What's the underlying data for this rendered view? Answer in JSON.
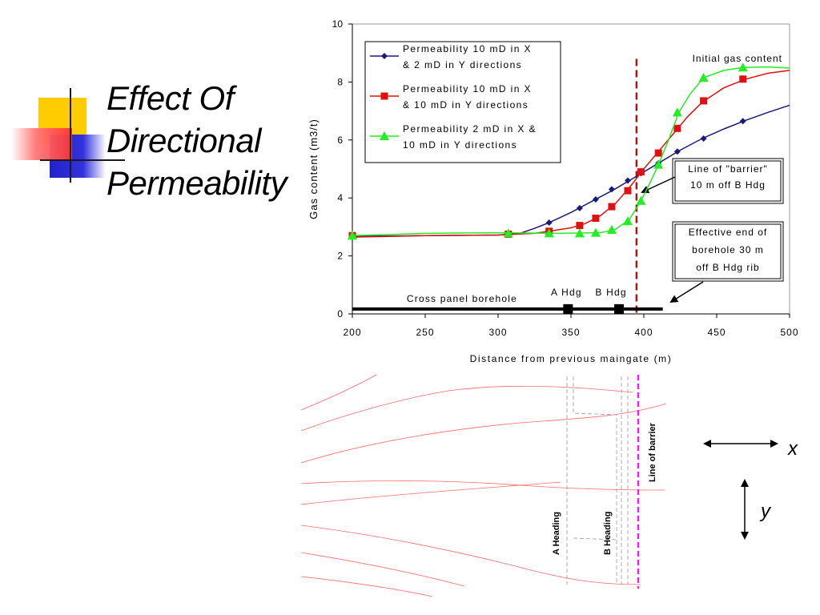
{
  "slide": {
    "title_lines": [
      "Effect Of",
      "Directional",
      "Permeability"
    ]
  },
  "chart_data": {
    "type": "line",
    "xlabel": "Distance from previous maingate (m)",
    "ylabel": "Gas content (m3/t)",
    "xlim": [
      200,
      500
    ],
    "ylim": [
      0,
      10
    ],
    "x_ticks": [
      200,
      250,
      300,
      350,
      400,
      450,
      500
    ],
    "y_ticks": [
      0,
      2,
      4,
      6,
      8,
      10
    ],
    "grid": false,
    "legend_position": "top-left",
    "series": [
      {
        "name": "Permeability 10 mD in X & 2 mD in Y directions",
        "legend_lines": [
          "Permeability 10 mD in X",
          "& 2 mD in Y directions"
        ],
        "color": "#1a1a7a",
        "marker": "diamond",
        "points": [
          [
            200,
            2.7
          ],
          [
            307,
            2.75
          ],
          [
            335,
            3.15
          ],
          [
            356,
            3.65
          ],
          [
            367,
            3.95
          ],
          [
            378,
            4.3
          ],
          [
            389,
            4.6
          ],
          [
            398,
            4.85
          ],
          [
            410,
            5.2
          ],
          [
            423,
            5.6
          ],
          [
            441,
            6.05
          ],
          [
            468,
            6.65
          ]
        ],
        "curve": [
          [
            200,
            2.68
          ],
          [
            250,
            2.7
          ],
          [
            300,
            2.72
          ],
          [
            315,
            2.78
          ],
          [
            325,
            2.95
          ],
          [
            335,
            3.15
          ],
          [
            350,
            3.5
          ],
          [
            365,
            3.9
          ],
          [
            380,
            4.3
          ],
          [
            395,
            4.75
          ],
          [
            410,
            5.2
          ],
          [
            425,
            5.65
          ],
          [
            440,
            6.05
          ],
          [
            455,
            6.38
          ],
          [
            470,
            6.68
          ],
          [
            485,
            6.95
          ],
          [
            500,
            7.2
          ]
        ]
      },
      {
        "name": "Permeability 10 mD in X & 10 mD in Y directions",
        "legend_lines": [
          "Permeability 10 mD in X",
          "& 10 mD in Y directions"
        ],
        "color": "#e01010",
        "marker": "square",
        "points": [
          [
            200,
            2.7
          ],
          [
            307,
            2.75
          ],
          [
            335,
            2.85
          ],
          [
            356,
            3.05
          ],
          [
            367,
            3.3
          ],
          [
            378,
            3.7
          ],
          [
            389,
            4.25
          ],
          [
            398,
            4.9
          ],
          [
            410,
            5.55
          ],
          [
            423,
            6.4
          ],
          [
            441,
            7.35
          ],
          [
            468,
            8.1
          ]
        ],
        "curve": [
          [
            200,
            2.65
          ],
          [
            250,
            2.7
          ],
          [
            300,
            2.72
          ],
          [
            325,
            2.78
          ],
          [
            335,
            2.85
          ],
          [
            350,
            2.97
          ],
          [
            360,
            3.12
          ],
          [
            370,
            3.38
          ],
          [
            380,
            3.78
          ],
          [
            390,
            4.35
          ],
          [
            400,
            5.0
          ],
          [
            410,
            5.6
          ],
          [
            420,
            6.2
          ],
          [
            430,
            6.8
          ],
          [
            440,
            7.3
          ],
          [
            455,
            7.8
          ],
          [
            470,
            8.1
          ],
          [
            485,
            8.3
          ],
          [
            500,
            8.4
          ]
        ]
      },
      {
        "name": "Permeability 2 mD in X & 10 mD in Y directions",
        "legend_lines": [
          "Permeability 2 mD in X &",
          "10 mD in Y directions"
        ],
        "color": "#22ee22",
        "marker": "triangle",
        "points": [
          [
            200,
            2.7
          ],
          [
            307,
            2.78
          ],
          [
            335,
            2.78
          ],
          [
            356,
            2.78
          ],
          [
            367,
            2.8
          ],
          [
            378,
            2.9
          ],
          [
            389,
            3.2
          ],
          [
            398,
            3.9
          ],
          [
            410,
            5.15
          ],
          [
            423,
            6.95
          ],
          [
            441,
            8.15
          ],
          [
            468,
            8.5
          ]
        ],
        "curve": [
          [
            200,
            2.7
          ],
          [
            250,
            2.78
          ],
          [
            300,
            2.8
          ],
          [
            340,
            2.78
          ],
          [
            370,
            2.8
          ],
          [
            380,
            2.9
          ],
          [
            390,
            3.25
          ],
          [
            398,
            3.9
          ],
          [
            405,
            4.6
          ],
          [
            410,
            5.15
          ],
          [
            417,
            6.0
          ],
          [
            424,
            6.95
          ],
          [
            432,
            7.6
          ],
          [
            441,
            8.15
          ],
          [
            455,
            8.4
          ],
          [
            468,
            8.5
          ],
          [
            485,
            8.52
          ],
          [
            500,
            8.48
          ]
        ]
      }
    ],
    "annotations": {
      "initial_gas": "Initial gas content",
      "barrier_lines": [
        "Line of \"barrier\"",
        "10 m off B Hdg"
      ],
      "effective_end_lines": [
        "Effective end of",
        "borehole 30 m",
        "off B Hdg rib"
      ],
      "a_hdg": "A Hdg",
      "b_hdg": "B Hdg",
      "cross_panel": "Cross panel borehole",
      "barrier_x": 395,
      "borehole_end_x": 413,
      "a_hdg_x": 348,
      "b_hdg_x": 383
    }
  },
  "diagram": {
    "a_heading": "A Heading",
    "b_heading": "B Heading",
    "line_of_barrier": "Line of barrier",
    "x_label": "x",
    "y_label": "y"
  }
}
